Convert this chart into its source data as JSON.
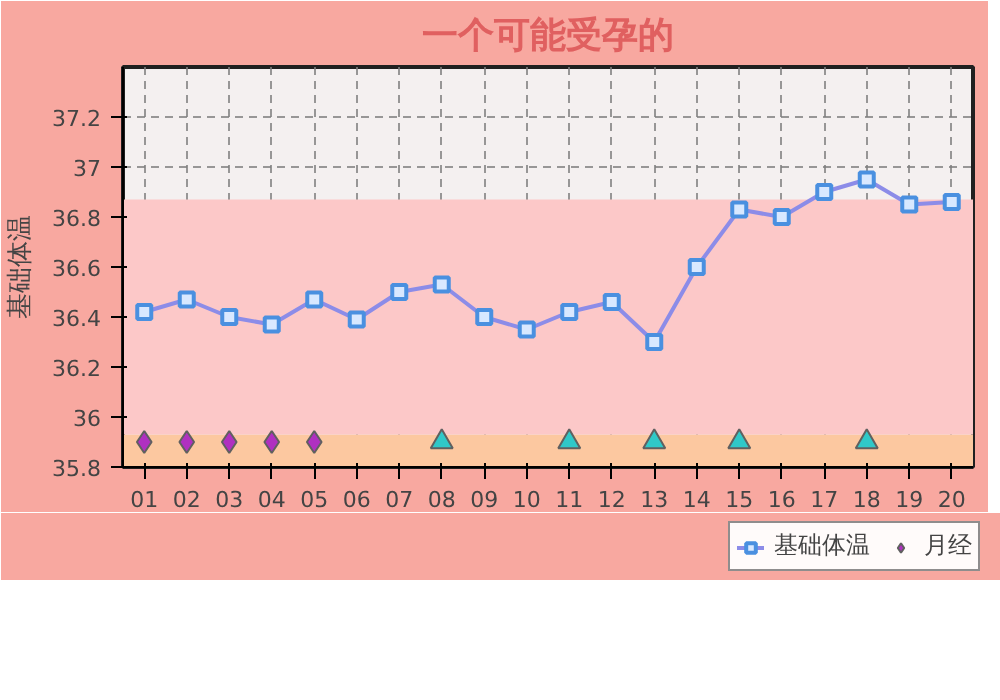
{
  "chart_data": {
    "type": "line",
    "title": "一个可能受孕的",
    "ylabel": "基础体温",
    "categories": [
      "01",
      "02",
      "03",
      "04",
      "05",
      "06",
      "07",
      "08",
      "09",
      "10",
      "11",
      "12",
      "13",
      "14",
      "15",
      "16",
      "17",
      "18",
      "19",
      "20"
    ],
    "series": [
      {
        "name": "基础体温",
        "color": "#8c8ce8",
        "marker": "square",
        "values": [
          36.42,
          36.47,
          36.4,
          36.37,
          36.47,
          36.39,
          36.5,
          36.53,
          36.4,
          36.35,
          36.42,
          36.46,
          36.3,
          36.6,
          36.83,
          36.8,
          36.9,
          36.95,
          36.85,
          36.86
        ]
      },
      {
        "name": "月经",
        "type": "scatter",
        "color": "#b030c0",
        "marker": "diamond",
        "x": [
          "01",
          "02",
          "03",
          "04",
          "05"
        ],
        "values": [
          35.9,
          35.9,
          35.9,
          35.9,
          35.9
        ]
      },
      {
        "type": "scatter",
        "color": "#30c8c8",
        "marker": "triangle",
        "x": [
          "08",
          "11",
          "13",
          "15",
          "18"
        ],
        "values": [
          35.9,
          35.9,
          35.9,
          35.9,
          35.9
        ]
      }
    ],
    "bands": [
      {
        "axis": "y",
        "from": 35.8,
        "to": 35.93,
        "color": "#fcc8a0"
      },
      {
        "axis": "y",
        "from": 35.93,
        "to": 36.87,
        "color": "#fcc8c8"
      }
    ],
    "ylim": [
      35.8,
      37.4
    ],
    "yticks": [
      35.8,
      36,
      36.2,
      36.4,
      36.6,
      36.8,
      37,
      37.2
    ],
    "grid": true,
    "legend": "bottom right"
  }
}
